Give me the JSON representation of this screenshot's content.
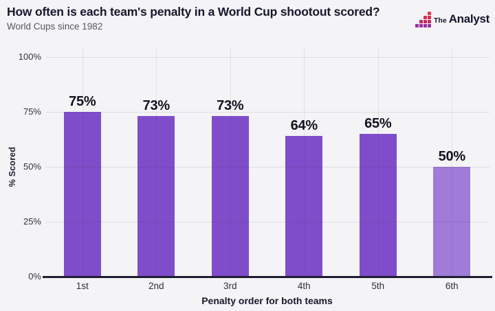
{
  "header": {
    "title": "How often is each team's penalty in a World Cup shootout scored?",
    "subtitle": "World Cups since 1982"
  },
  "logo": {
    "prefix": "The",
    "name": "Analyst",
    "icon_grid": [
      [
        "",
        "",
        "",
        "#e43a4b"
      ],
      [
        "",
        "",
        "#d93050",
        "#d5304f"
      ],
      [
        "",
        "#c32b69",
        "#c32b69",
        "#c32b69"
      ],
      [
        "#9a31a2",
        "#9a31a2",
        "#9a31a2",
        "#9a31a2"
      ]
    ]
  },
  "chart_data": {
    "type": "bar",
    "title": "How often is each team's penalty in a World Cup shootout scored?",
    "subtitle": "World Cups since 1982",
    "categories": [
      "1st",
      "2nd",
      "3rd",
      "4th",
      "5th",
      "6th"
    ],
    "values": [
      75,
      73,
      73,
      64,
      65,
      50
    ],
    "value_labels": [
      "75%",
      "73%",
      "73%",
      "64%",
      "65%",
      "50%"
    ],
    "bar_colors": [
      "#7f4dc9",
      "#7f4dc9",
      "#7f4dc9",
      "#7f4dc9",
      "#7f4dc9",
      "#a07bd8"
    ],
    "xlabel": "Penalty order for both teams",
    "ylabel": "% Scored",
    "ylim": [
      0,
      100
    ],
    "yticks": [
      0,
      25,
      50,
      75,
      100
    ],
    "ytick_labels": [
      "0%",
      "25%",
      "50%",
      "75%",
      "100%"
    ],
    "grid": true,
    "legend": "none"
  },
  "colors": {
    "background": "#f4f3f5",
    "bar": "#7f4dc9",
    "bar_light": "#a07bd8",
    "axis_line": "#1d1d30",
    "gridline": "#e3e2e5",
    "title": "#17172e",
    "subtitle": "#57565e"
  }
}
